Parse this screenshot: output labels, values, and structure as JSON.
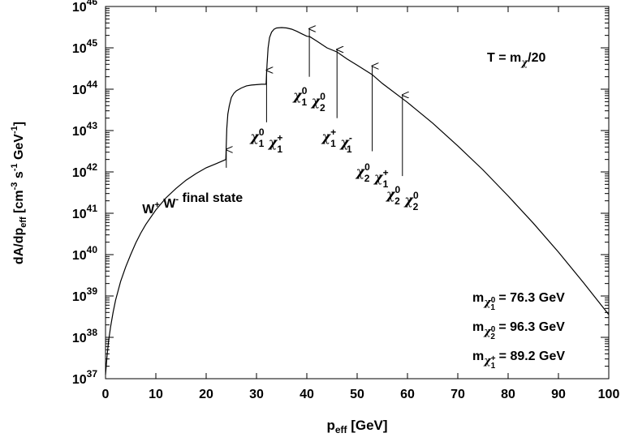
{
  "chart_data": {
    "type": "line",
    "title": "",
    "xlabel": {
      "main": "p",
      "sub": "eff",
      "rest": " [GeV]"
    },
    "ylabel": {
      "p1": "dA/dp",
      "sub1": "eff",
      "p2": " [cm",
      "sup1": "-3",
      "p3": " s",
      "sup2": "-1",
      "p4": " GeV",
      "sup3": "-1",
      "p5": "]"
    },
    "xlim": [
      0,
      100
    ],
    "ylim_log10": [
      37,
      46
    ],
    "y_scale": "log",
    "x_ticks": [
      "0",
      "10",
      "20",
      "30",
      "40",
      "50",
      "60",
      "70",
      "80",
      "90",
      "100"
    ],
    "y_tick_exponents": [
      "37",
      "38",
      "39",
      "40",
      "41",
      "42",
      "43",
      "44",
      "45",
      "46"
    ],
    "y_tick_base": "10",
    "series": [
      {
        "x": [
          0,
          0.3,
          0.6,
          1,
          1.5,
          2,
          3,
          4,
          5,
          6,
          7,
          8,
          10,
          12,
          14,
          16,
          18,
          20,
          22,
          23.9,
          24.1,
          24.3,
          24.6,
          25,
          25.5,
          26,
          27,
          28,
          29,
          30,
          31,
          31.9,
          32.1,
          32.3,
          32.6,
          33,
          33.5,
          34,
          35,
          36,
          37,
          38,
          39,
          40,
          40.6,
          42,
          44,
          46,
          48,
          50,
          53,
          55,
          60,
          65,
          70,
          75,
          80,
          85,
          90,
          95,
          100
        ],
        "log10_y": [
          37.1,
          37.55,
          37.9,
          38.25,
          38.6,
          38.9,
          39.35,
          39.7,
          40.0,
          40.28,
          40.52,
          40.73,
          41.08,
          41.37,
          41.6,
          41.8,
          41.96,
          42.1,
          42.2,
          42.3,
          43.05,
          43.4,
          43.6,
          43.8,
          43.9,
          43.96,
          44.03,
          44.08,
          44.1,
          44.11,
          44.12,
          44.12,
          44.6,
          45.0,
          45.25,
          45.38,
          45.45,
          45.48,
          45.49,
          45.48,
          45.45,
          45.4,
          45.34,
          45.28,
          45.27,
          45.16,
          45.0,
          44.9,
          44.73,
          44.58,
          44.35,
          44.14,
          43.68,
          43.18,
          42.63,
          42.05,
          41.42,
          40.76,
          40.06,
          39.32,
          38.55
        ]
      }
    ],
    "annotations": [
      {
        "lines": [
          [
            {
              "t": "W"
            },
            {
              "t": "+",
              "sup": true
            },
            {
              "t": " W"
            },
            {
              "t": "-",
              "sup": true
            },
            {
              "t": " final state"
            }
          ]
        ],
        "arrow_x": 24.0,
        "arrow_tip": 42.58,
        "arrow_tail": 42.1,
        "text_x": 17.3,
        "text_y": 41.0
      },
      {
        "lines": [
          [
            {
              "t": "χ"
            },
            {
              "t": "1",
              "sub": true,
              "sup": "0"
            },
            {
              "t": " χ"
            },
            {
              "t": "1",
              "sub": true,
              "sup": "+"
            }
          ]
        ],
        "arrow_x": 32.0,
        "arrow_tip": 44.5,
        "arrow_tail": 43.2,
        "text_x": 32.0,
        "text_y": 42.75
      },
      {
        "lines": [
          [
            {
              "t": "χ"
            },
            {
              "t": "1",
              "sub": true,
              "sup": "0"
            },
            {
              "t": " χ"
            },
            {
              "t": "2",
              "sub": true,
              "sup": "0"
            }
          ]
        ],
        "arrow_x": 40.5,
        "arrow_tip": 45.5,
        "arrow_tail": 44.3,
        "text_x": 40.5,
        "text_y": 43.75
      },
      {
        "lines": [
          [
            {
              "t": "χ"
            },
            {
              "t": "1",
              "sub": true,
              "sup": "+"
            },
            {
              "t": " χ"
            },
            {
              "t": "1",
              "sub": true,
              "sup": "-"
            }
          ]
        ],
        "arrow_x": 46.0,
        "arrow_tip": 45.0,
        "arrow_tail": 43.3,
        "text_x": 46.0,
        "text_y": 42.75
      },
      {
        "lines": [
          [
            {
              "t": "χ"
            },
            {
              "t": "2",
              "sub": true,
              "sup": "0"
            },
            {
              "t": " χ"
            },
            {
              "t": "1",
              "sub": true,
              "sup": "+"
            }
          ]
        ],
        "arrow_x": 53.0,
        "arrow_tip": 44.6,
        "arrow_tail": 42.5,
        "text_x": 53.0,
        "text_y": 41.9
      },
      {
        "lines": [
          [
            {
              "t": "χ"
            },
            {
              "t": "2",
              "sub": true,
              "sup": "0"
            },
            {
              "t": " χ"
            },
            {
              "t": "2",
              "sub": true,
              "sup": "0"
            }
          ]
        ],
        "arrow_x": 59.0,
        "arrow_tip": 43.9,
        "arrow_tail": 41.9,
        "text_x": 59.0,
        "text_y": 41.35
      }
    ],
    "temperature_label": {
      "main": "T = m",
      "sub": "χ",
      "rest": "/20"
    },
    "mass_labels": [
      {
        "base": "m",
        "sub": "χ",
        "subsub": "1",
        "subsup": "0",
        "value": " = 76.3 GeV"
      },
      {
        "base": "m",
        "sub": "χ",
        "subsub": "2",
        "subsup": "0",
        "value": " = 96.3 GeV"
      },
      {
        "base": "m",
        "sub": "χ",
        "subsub": "1",
        "subsup": "+",
        "value": " = 89.2 GeV"
      }
    ]
  }
}
